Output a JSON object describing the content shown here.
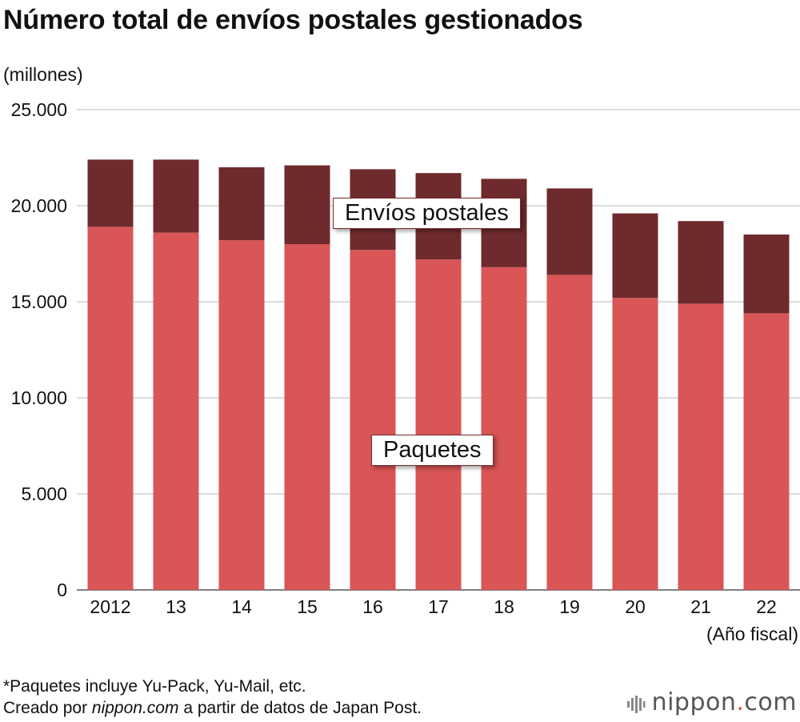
{
  "chart_data": {
    "type": "bar",
    "stacked": true,
    "title": "Número total de envíos postales gestionados",
    "ylabel": "(millones)",
    "xlabel": "(Año fiscal)",
    "ylim": [
      0,
      25000
    ],
    "yticks": [
      "25.000",
      "20.000",
      "15.000",
      "10.000",
      "5.000",
      "0"
    ],
    "ytick_values": [
      25000,
      20000,
      15000,
      10000,
      5000,
      0
    ],
    "categories": [
      "2012",
      "13",
      "14",
      "15",
      "16",
      "17",
      "18",
      "19",
      "20",
      "21",
      "22"
    ],
    "series": [
      {
        "name": "Paquetes",
        "color": "#d95556",
        "values": [
          18900,
          18600,
          18200,
          18000,
          17700,
          17200,
          16800,
          16400,
          15200,
          14900,
          14400
        ]
      },
      {
        "name": "Envíos postales",
        "color": "#6e2a2d",
        "values": [
          3500,
          3800,
          3800,
          4100,
          4200,
          4500,
          4600,
          4500,
          4400,
          4300,
          4100
        ]
      }
    ],
    "grid": true
  },
  "labels": {
    "series_paquetes": "Paquetes",
    "series_postales": "Envíos postales"
  },
  "footnote": {
    "line1": "*Paquetes incluye Yu-Pack, Yu-Mail, etc.",
    "line2_prefix": "Creado por ",
    "line2_em": "nippon.com",
    "line2_suffix": " a partir de datos de Japan Post."
  },
  "brand": {
    "name": "nippon",
    "dot": ".",
    "suffix": "com"
  }
}
